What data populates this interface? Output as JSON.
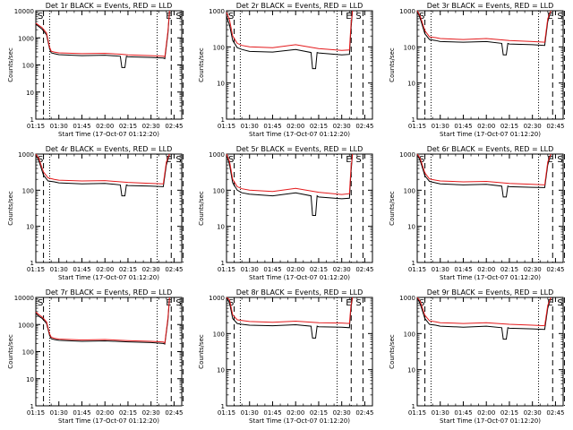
{
  "chart_data": [
    {
      "type": "line",
      "title": "Det 1r BLACK = Events, RED = LLD",
      "xlabel": "Start Time (17-Oct-07 01:12:20)",
      "ylabel": "Counts/sec",
      "yscale": "log",
      "ylim": [
        1,
        10000
      ],
      "yticks": [
        "1",
        "10",
        "100",
        "1000",
        "10000"
      ],
      "xlim": [
        "01:15",
        "02:50"
      ],
      "xticks": [
        "01:15",
        "01:30",
        "01:45",
        "02:00",
        "02:15",
        "02:30",
        "02:45"
      ],
      "markers": {
        "S_left": "01:16",
        "E": "02:42",
        "S_right": "02:45"
      },
      "series": [
        {
          "color": "#000000",
          "x": [
            "01:15",
            "01:17",
            "01:19",
            "01:22",
            "01:24",
            "01:25",
            "01:27",
            "01:30",
            "01:45",
            "02:00",
            "02:10",
            "02:11",
            "02:13",
            "02:14",
            "02:15",
            "02:30",
            "02:38",
            "02:39",
            "02:41",
            "02:42"
          ],
          "y": [
            3200,
            2600,
            2100,
            1300,
            400,
            280,
            260,
            240,
            220,
            230,
            210,
            80,
            80,
            210,
            200,
            190,
            180,
            170,
            1500,
            9000
          ]
        },
        {
          "color": "#e41a1c",
          "x": [
            "01:15",
            "01:17",
            "01:19",
            "01:22",
            "01:24",
            "01:25",
            "01:27",
            "01:30",
            "01:45",
            "02:00",
            "02:10",
            "02:15",
            "02:30",
            "02:38",
            "02:39",
            "02:41",
            "02:42"
          ],
          "y": [
            3500,
            2900,
            2400,
            1500,
            450,
            320,
            300,
            280,
            260,
            270,
            250,
            235,
            220,
            210,
            200,
            1800,
            10000
          ]
        }
      ]
    },
    {
      "type": "line",
      "title": "Det 2r BLACK = Events, RED = LLD",
      "xlabel": "Start Time (17-Oct-07 01:12:20)",
      "ylabel": "Counts/sec",
      "yscale": "log",
      "ylim": [
        1,
        1000
      ],
      "yticks": [
        "1",
        "10",
        "100",
        "1000"
      ],
      "xlim": [
        "01:15",
        "02:50"
      ],
      "xticks": [
        "01:15",
        "01:30",
        "01:45",
        "02:00",
        "02:15",
        "02:30",
        "02:45"
      ],
      "markers": {
        "S_left": "01:16",
        "E": "02:35",
        "S_right": "02:38"
      },
      "series": [
        {
          "color": "#000000",
          "x": [
            "01:15",
            "01:17",
            "01:19",
            "01:22",
            "01:25",
            "01:30",
            "01:45",
            "02:00",
            "02:10",
            "02:11",
            "02:13",
            "02:14",
            "02:15",
            "02:30",
            "02:35",
            "02:36",
            "02:37"
          ],
          "y": [
            700,
            400,
            150,
            95,
            85,
            75,
            72,
            85,
            70,
            25,
            25,
            70,
            68,
            60,
            62,
            300,
            1000
          ]
        },
        {
          "color": "#e41a1c",
          "x": [
            "01:15",
            "01:17",
            "01:19",
            "01:22",
            "01:25",
            "01:30",
            "01:45",
            "02:00",
            "02:15",
            "02:30",
            "02:35",
            "02:36",
            "02:37"
          ],
          "y": [
            900,
            550,
            200,
            125,
            110,
            100,
            95,
            115,
            90,
            80,
            82,
            400,
            1000
          ]
        }
      ]
    },
    {
      "type": "line",
      "title": "Det 3r BLACK = Events, RED = LLD",
      "xlabel": "Start Time (17-Oct-07 01:12:20)",
      "ylabel": "Counts/sec",
      "yscale": "log",
      "ylim": [
        1,
        1000
      ],
      "yticks": [
        "1",
        "10",
        "100",
        "1000"
      ],
      "xlim": [
        "01:15",
        "02:50"
      ],
      "xticks": [
        "01:15",
        "01:30",
        "01:45",
        "02:00",
        "02:15",
        "02:30",
        "02:45"
      ],
      "markers": {
        "S_left": "01:16",
        "E": "02:42",
        "S_right": "02:45"
      },
      "series": [
        {
          "color": "#000000",
          "x": [
            "01:15",
            "01:17",
            "01:20",
            "01:23",
            "01:27",
            "01:30",
            "01:45",
            "02:00",
            "02:10",
            "02:11",
            "02:13",
            "02:14",
            "02:15",
            "02:30",
            "02:38",
            "02:40",
            "02:42"
          ],
          "y": [
            1000,
            600,
            230,
            160,
            150,
            140,
            135,
            140,
            125,
            60,
            60,
            125,
            120,
            115,
            110,
            500,
            1000
          ]
        },
        {
          "color": "#e41a1c",
          "x": [
            "01:15",
            "01:17",
            "01:20",
            "01:23",
            "01:27",
            "01:30",
            "01:45",
            "02:00",
            "02:15",
            "02:30",
            "02:38",
            "02:40",
            "02:42"
          ],
          "y": [
            1000,
            700,
            280,
            190,
            180,
            170,
            160,
            170,
            150,
            140,
            135,
            600,
            1000
          ]
        }
      ]
    },
    {
      "type": "line",
      "title": "Det 4r BLACK = Events, RED = LLD",
      "xlabel": "Start Time (17-Oct-07 01:12:20)",
      "ylabel": "Counts/sec",
      "yscale": "log",
      "ylim": [
        1,
        1000
      ],
      "yticks": [
        "1",
        "10",
        "100",
        "1000"
      ],
      "xlim": [
        "01:15",
        "02:50"
      ],
      "xticks": [
        "01:15",
        "01:30",
        "01:45",
        "02:00",
        "02:15",
        "02:30",
        "02:45"
      ],
      "markers": {
        "S_left": "01:16",
        "E": "02:42",
        "S_right": "02:45"
      },
      "series": [
        {
          "color": "#000000",
          "x": [
            "01:15",
            "01:17",
            "01:20",
            "01:23",
            "01:27",
            "01:30",
            "01:45",
            "02:00",
            "02:10",
            "02:11",
            "02:13",
            "02:14",
            "02:15",
            "02:30",
            "02:38",
            "02:40",
            "02:42"
          ],
          "y": [
            1000,
            650,
            260,
            180,
            170,
            160,
            150,
            155,
            140,
            70,
            70,
            140,
            135,
            130,
            125,
            500,
            1000
          ]
        },
        {
          "color": "#e41a1c",
          "x": [
            "01:15",
            "01:17",
            "01:20",
            "01:23",
            "01:27",
            "01:30",
            "01:45",
            "02:00",
            "02:15",
            "02:30",
            "02:38",
            "02:40",
            "02:42"
          ],
          "y": [
            1000,
            750,
            320,
            220,
            200,
            190,
            180,
            185,
            165,
            155,
            150,
            600,
            1000
          ]
        }
      ]
    },
    {
      "type": "line",
      "title": "Det 5r BLACK = Events, RED = LLD",
      "xlabel": "Start Time (17-Oct-07 01:12:20)",
      "ylabel": "Counts/sec",
      "yscale": "log",
      "ylim": [
        1,
        1000
      ],
      "yticks": [
        "1",
        "10",
        "100",
        "1000"
      ],
      "xlim": [
        "01:15",
        "02:50"
      ],
      "xticks": [
        "01:15",
        "01:30",
        "01:45",
        "02:00",
        "02:15",
        "02:30",
        "02:45"
      ],
      "markers": {
        "S_left": "01:16",
        "E": "02:35",
        "S_right": "02:38"
      },
      "series": [
        {
          "color": "#000000",
          "x": [
            "01:15",
            "01:17",
            "01:19",
            "01:22",
            "01:25",
            "01:30",
            "01:45",
            "02:00",
            "02:10",
            "02:11",
            "02:13",
            "02:14",
            "02:15",
            "02:30",
            "02:35",
            "02:36",
            "02:37"
          ],
          "y": [
            1000,
            500,
            160,
            100,
            85,
            78,
            70,
            85,
            70,
            20,
            20,
            70,
            65,
            58,
            60,
            300,
            1000
          ]
        },
        {
          "color": "#e41a1c",
          "x": [
            "01:15",
            "01:17",
            "01:19",
            "01:22",
            "01:25",
            "01:30",
            "01:45",
            "02:00",
            "02:15",
            "02:30",
            "02:35",
            "02:36",
            "02:37"
          ],
          "y": [
            1000,
            620,
            200,
            125,
            110,
            100,
            92,
            112,
            88,
            76,
            80,
            400,
            1000
          ]
        }
      ]
    },
    {
      "type": "line",
      "title": "Det 6r BLACK = Events, RED = LLD",
      "xlabel": "Start Time (17-Oct-07 01:12:20)",
      "ylabel": "Counts/sec",
      "yscale": "log",
      "ylim": [
        1,
        1000
      ],
      "yticks": [
        "1",
        "10",
        "100",
        "1000"
      ],
      "xlim": [
        "01:15",
        "02:50"
      ],
      "xticks": [
        "01:15",
        "01:30",
        "01:45",
        "02:00",
        "02:15",
        "02:30",
        "02:45"
      ],
      "markers": {
        "S_left": "01:16",
        "E": "02:42",
        "S_right": "02:45"
      },
      "series": [
        {
          "color": "#000000",
          "x": [
            "01:15",
            "01:17",
            "01:20",
            "01:23",
            "01:27",
            "01:30",
            "01:45",
            "02:00",
            "02:10",
            "02:11",
            "02:13",
            "02:14",
            "02:15",
            "02:30",
            "02:38",
            "02:40",
            "02:42"
          ],
          "y": [
            1000,
            650,
            250,
            175,
            160,
            150,
            140,
            145,
            130,
            65,
            65,
            130,
            125,
            120,
            118,
            500,
            1000
          ]
        },
        {
          "color": "#e41a1c",
          "x": [
            "01:15",
            "01:17",
            "01:20",
            "01:23",
            "01:27",
            "01:30",
            "01:45",
            "02:00",
            "02:15",
            "02:30",
            "02:38",
            "02:40",
            "02:42"
          ],
          "y": [
            1000,
            750,
            300,
            205,
            190,
            180,
            170,
            175,
            155,
            145,
            140,
            600,
            1000
          ]
        }
      ]
    },
    {
      "type": "line",
      "title": "Det 7r BLACK = Events, RED = LLD",
      "xlabel": "Start Time (17-Oct-07 01:12:20)",
      "ylabel": "Counts/sec",
      "yscale": "log",
      "ylim": [
        1,
        10000
      ],
      "yticks": [
        "1",
        "10",
        "100",
        "1000",
        "10000"
      ],
      "xlim": [
        "01:15",
        "02:50"
      ],
      "xticks": [
        "01:15",
        "01:30",
        "01:45",
        "02:00",
        "02:15",
        "02:30",
        "02:45"
      ],
      "markers": {
        "S_left": "01:16",
        "E": "02:42",
        "S_right": "02:45"
      },
      "series": [
        {
          "color": "#000000",
          "x": [
            "01:15",
            "01:17",
            "01:19",
            "01:22",
            "01:24",
            "01:25",
            "01:27",
            "01:30",
            "01:45",
            "02:00",
            "02:15",
            "02:30",
            "02:38",
            "02:39",
            "02:41",
            "02:42"
          ],
          "y": [
            2600,
            2000,
            1700,
            1100,
            400,
            300,
            280,
            260,
            240,
            250,
            230,
            215,
            200,
            190,
            1500,
            9000
          ]
        },
        {
          "color": "#e41a1c",
          "x": [
            "01:15",
            "01:17",
            "01:19",
            "01:22",
            "01:24",
            "01:25",
            "01:27",
            "01:30",
            "01:45",
            "02:00",
            "02:15",
            "02:30",
            "02:38",
            "02:39",
            "02:41",
            "02:42"
          ],
          "y": [
            2900,
            2300,
            1900,
            1250,
            450,
            340,
            310,
            290,
            270,
            280,
            255,
            240,
            225,
            210,
            1800,
            10000
          ]
        }
      ]
    },
    {
      "type": "line",
      "title": "Det 8r BLACK = Events, RED = LLD",
      "xlabel": "Start Time (17-Oct-07 01:12:20)",
      "ylabel": "Counts/sec",
      "yscale": "log",
      "ylim": [
        1,
        1000
      ],
      "yticks": [
        "1",
        "10",
        "100",
        "1000"
      ],
      "xlim": [
        "01:15",
        "02:50"
      ],
      "xticks": [
        "01:15",
        "01:30",
        "01:45",
        "02:00",
        "02:15",
        "02:30",
        "02:45"
      ],
      "markers": {
        "S_left": "01:16",
        "E": "02:35",
        "S_right": "02:38"
      },
      "series": [
        {
          "color": "#000000",
          "x": [
            "01:15",
            "01:17",
            "01:19",
            "01:22",
            "01:25",
            "01:30",
            "01:45",
            "02:00",
            "02:10",
            "02:11",
            "02:13",
            "02:14",
            "02:15",
            "02:30",
            "02:35",
            "02:36",
            "02:37"
          ],
          "y": [
            1000,
            700,
            260,
            190,
            180,
            170,
            165,
            175,
            160,
            75,
            75,
            160,
            155,
            150,
            145,
            500,
            1000
          ]
        },
        {
          "color": "#e41a1c",
          "x": [
            "01:15",
            "01:17",
            "01:19",
            "01:22",
            "01:25",
            "01:30",
            "01:45",
            "02:00",
            "02:15",
            "02:30",
            "02:35",
            "02:36",
            "02:37"
          ],
          "y": [
            1000,
            850,
            330,
            240,
            230,
            215,
            205,
            220,
            200,
            195,
            190,
            600,
            1000
          ]
        }
      ]
    },
    {
      "type": "line",
      "title": "Det 9r BLACK = Events, RED = LLD",
      "xlabel": "Start Time (17-Oct-07 01:12:20)",
      "ylabel": "Counts/sec",
      "yscale": "log",
      "ylim": [
        1,
        1000
      ],
      "yticks": [
        "1",
        "10",
        "100",
        "1000"
      ],
      "xlim": [
        "01:15",
        "02:50"
      ],
      "xticks": [
        "01:15",
        "01:30",
        "01:45",
        "02:00",
        "02:15",
        "02:30",
        "02:45"
      ],
      "markers": {
        "S_left": "01:16",
        "E": "02:42",
        "S_right": "02:45"
      },
      "series": [
        {
          "color": "#000000",
          "x": [
            "01:15",
            "01:17",
            "01:20",
            "01:23",
            "01:27",
            "01:30",
            "01:45",
            "02:00",
            "02:10",
            "02:11",
            "02:13",
            "02:14",
            "02:15",
            "02:30",
            "02:38",
            "02:40",
            "02:42"
          ],
          "y": [
            1000,
            650,
            260,
            180,
            170,
            160,
            150,
            160,
            145,
            70,
            70,
            145,
            140,
            135,
            130,
            500,
            1000
          ]
        },
        {
          "color": "#e41a1c",
          "x": [
            "01:15",
            "01:17",
            "01:20",
            "01:23",
            "01:27",
            "01:30",
            "01:45",
            "02:00",
            "02:15",
            "02:30",
            "02:38",
            "02:40",
            "02:42"
          ],
          "y": [
            1000,
            780,
            320,
            225,
            210,
            200,
            190,
            200,
            180,
            170,
            165,
            600,
            1000
          ]
        }
      ]
    }
  ]
}
